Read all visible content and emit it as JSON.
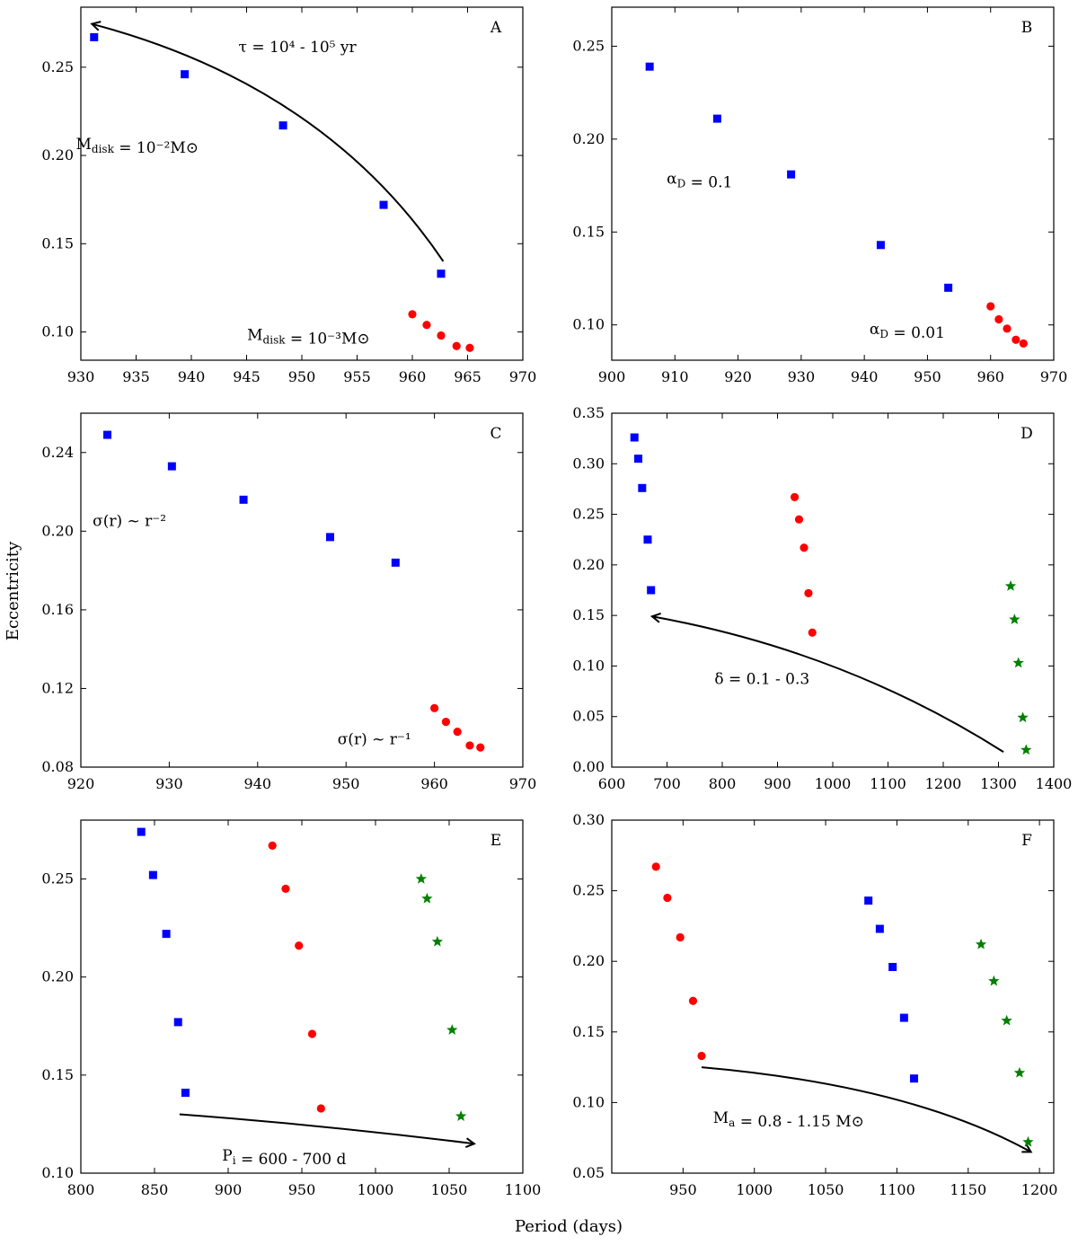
{
  "figure": {
    "xlabel": "Period (days)",
    "ylabel": "Eccentricity"
  },
  "colors": {
    "blue": "#0000ff",
    "red": "#ff0000",
    "green": "#008000",
    "axis": "#000000"
  },
  "chart_data": [
    {
      "id": "A",
      "type": "scatter",
      "letter": "A",
      "xlim": [
        930,
        970
      ],
      "ylim": [
        0.084,
        0.284
      ],
      "xticks": [
        930,
        935,
        940,
        945,
        950,
        955,
        960,
        965,
        970
      ],
      "yticks": [
        0.1,
        0.15,
        0.2,
        0.25
      ],
      "tick_decimals": 2,
      "series": [
        {
          "name": "blue",
          "marker": "square",
          "color": "#0000ff",
          "x": [
            931.2,
            939.4,
            948.3,
            957.4,
            962.6
          ],
          "y": [
            0.267,
            0.246,
            0.217,
            0.172,
            0.133
          ]
        },
        {
          "name": "red",
          "marker": "circle",
          "color": "#ff0000",
          "x": [
            960.0,
            961.3,
            962.6,
            964.0,
            965.2
          ],
          "y": [
            0.11,
            0.104,
            0.098,
            0.092,
            0.091
          ]
        }
      ],
      "arrows": [
        {
          "from": [
            962.8,
            0.14
          ],
          "to": [
            931.0,
            0.2745
          ],
          "ctrl": [
            952,
            0.24
          ]
        }
      ],
      "annotations": [
        {
          "text": "τ = 10⁴ - 10⁵ yr",
          "x": 949.6,
          "y": 0.2585
        },
        {
          "text": "M_disk = 10⁻²M⊙",
          "x": 935.1,
          "y": 0.2035
        },
        {
          "text": "M_disk = 10⁻³M⊙",
          "x": 950.6,
          "y": 0.0955
        }
      ]
    },
    {
      "id": "B",
      "type": "scatter",
      "letter": "B",
      "xlim": [
        900,
        970
      ],
      "ylim": [
        0.081,
        0.271
      ],
      "xticks": [
        900,
        910,
        920,
        930,
        940,
        950,
        960,
        970
      ],
      "yticks": [
        0.1,
        0.15,
        0.2,
        0.25
      ],
      "tick_decimals": 2,
      "series": [
        {
          "name": "blue",
          "marker": "square",
          "color": "#0000ff",
          "x": [
            906.0,
            916.7,
            928.4,
            942.6,
            953.3
          ],
          "y": [
            0.239,
            0.211,
            0.181,
            0.143,
            0.12
          ]
        },
        {
          "name": "red",
          "marker": "circle",
          "color": "#ff0000",
          "x": [
            960.0,
            961.3,
            962.6,
            964.0,
            965.2
          ],
          "y": [
            0.11,
            0.103,
            0.098,
            0.092,
            0.09
          ]
        }
      ],
      "arrows": [],
      "annotations": [
        {
          "text": "α_D = 0.1",
          "x": 913.9,
          "y": 0.176
        },
        {
          "text": "α_D = 0.01",
          "x": 946.8,
          "y": 0.095
        }
      ]
    },
    {
      "id": "C",
      "type": "scatter",
      "letter": "C",
      "xlim": [
        920,
        970
      ],
      "ylim": [
        0.08,
        0.26
      ],
      "xticks": [
        920,
        930,
        940,
        950,
        960,
        970
      ],
      "yticks": [
        0.08,
        0.12,
        0.16,
        0.2,
        0.24
      ],
      "tick_decimals": 2,
      "series": [
        {
          "name": "blue",
          "marker": "square",
          "color": "#0000ff",
          "x": [
            923.0,
            930.3,
            938.4,
            948.2,
            955.6
          ],
          "y": [
            0.249,
            0.233,
            0.216,
            0.197,
            0.184
          ]
        },
        {
          "name": "red",
          "marker": "circle",
          "color": "#ff0000",
          "x": [
            960.0,
            961.3,
            962.6,
            964.0,
            965.2
          ],
          "y": [
            0.11,
            0.103,
            0.098,
            0.091,
            0.09
          ]
        }
      ],
      "arrows": [],
      "annotations": [
        {
          "text": "σ(r) ~ r⁻²",
          "x": 925.5,
          "y": 0.2026
        },
        {
          "text": "σ(r) ~ r⁻¹",
          "x": 953.2,
          "y": 0.0916
        }
      ]
    },
    {
      "id": "D",
      "type": "scatter",
      "letter": "D",
      "xlim": [
        600,
        1400
      ],
      "ylim": [
        0.0,
        0.35
      ],
      "xticks": [
        600,
        700,
        800,
        900,
        1000,
        1100,
        1200,
        1300,
        1400
      ],
      "yticks": [
        0.0,
        0.05,
        0.1,
        0.15,
        0.2,
        0.25,
        0.3,
        0.35
      ],
      "tick_decimals": 2,
      "series": [
        {
          "name": "blue",
          "marker": "square",
          "color": "#0000ff",
          "x": [
            641,
            648,
            655,
            665,
            671
          ],
          "y": [
            0.326,
            0.305,
            0.276,
            0.225,
            0.175
          ]
        },
        {
          "name": "red",
          "marker": "circle",
          "color": "#ff0000",
          "x": [
            931,
            939,
            948,
            956,
            963
          ],
          "y": [
            0.267,
            0.245,
            0.217,
            0.172,
            0.133
          ]
        },
        {
          "name": "green",
          "marker": "star",
          "color": "#008000",
          "x": [
            1322,
            1329,
            1336,
            1344,
            1350
          ],
          "y": [
            0.179,
            0.146,
            0.103,
            0.049,
            0.017
          ]
        }
      ],
      "arrows": [
        {
          "from": [
            1309,
            0.015
          ],
          "to": [
            673,
            0.149
          ],
          "ctrl": [
            1020,
            0.115
          ]
        }
      ],
      "annotations": [
        {
          "text": "δ = 0.1 - 0.3",
          "x": 872,
          "y": 0.082
        }
      ]
    },
    {
      "id": "E",
      "type": "scatter",
      "letter": "E",
      "xlim": [
        800,
        1100
      ],
      "ylim": [
        0.1,
        0.28
      ],
      "xticks": [
        800,
        850,
        900,
        950,
        1000,
        1050,
        1100
      ],
      "yticks": [
        0.1,
        0.15,
        0.2,
        0.25
      ],
      "tick_decimals": 2,
      "series": [
        {
          "name": "blue",
          "marker": "square",
          "color": "#0000ff",
          "x": [
            841,
            849,
            858,
            866,
            871
          ],
          "y": [
            0.274,
            0.252,
            0.222,
            0.177,
            0.141
          ]
        },
        {
          "name": "red",
          "marker": "circle",
          "color": "#ff0000",
          "x": [
            930,
            939,
            948,
            957,
            963
          ],
          "y": [
            0.267,
            0.245,
            0.216,
            0.171,
            0.133
          ]
        },
        {
          "name": "green",
          "marker": "star",
          "color": "#008000",
          "x": [
            1031,
            1035,
            1042,
            1052,
            1058
          ],
          "y": [
            0.25,
            0.24,
            0.218,
            0.173,
            0.129
          ]
        }
      ],
      "arrows": [
        {
          "from": [
            867,
            0.13
          ],
          "to": [
            1067,
            0.115
          ],
          "ctrl": [
            965,
            0.1245
          ]
        }
      ],
      "annotations": [
        {
          "text": "P_i = 600 - 700 d",
          "x": 938,
          "y": 0.1065
        }
      ]
    },
    {
      "id": "F",
      "type": "scatter",
      "letter": "F",
      "xlim": [
        900,
        1210
      ],
      "ylim": [
        0.05,
        0.3
      ],
      "xticks": [
        950,
        1000,
        1050,
        1100,
        1150,
        1200
      ],
      "yticks": [
        0.05,
        0.1,
        0.15,
        0.2,
        0.25,
        0.3
      ],
      "tick_decimals": 2,
      "series": [
        {
          "name": "red",
          "marker": "circle",
          "color": "#ff0000",
          "x": [
            931,
            939,
            948,
            957,
            963
          ],
          "y": [
            0.267,
            0.245,
            0.217,
            0.172,
            0.133
          ]
        },
        {
          "name": "blue",
          "marker": "square",
          "color": "#0000ff",
          "x": [
            1080,
            1088,
            1097,
            1105,
            1112
          ],
          "y": [
            0.243,
            0.223,
            0.196,
            0.16,
            0.117
          ]
        },
        {
          "name": "green",
          "marker": "star",
          "color": "#008000",
          "x": [
            1159,
            1168,
            1177,
            1186,
            1192
          ],
          "y": [
            0.212,
            0.186,
            0.158,
            0.121,
            0.072
          ]
        }
      ],
      "arrows": [
        {
          "from": [
            963,
            0.125
          ],
          "to": [
            1194,
            0.065
          ],
          "ctrl": [
            1110,
            0.112
          ]
        }
      ],
      "annotations": [
        {
          "text": "M_a = 0.8 - 1.15 M⊙",
          "x": 1024,
          "y": 0.0855
        }
      ]
    }
  ]
}
